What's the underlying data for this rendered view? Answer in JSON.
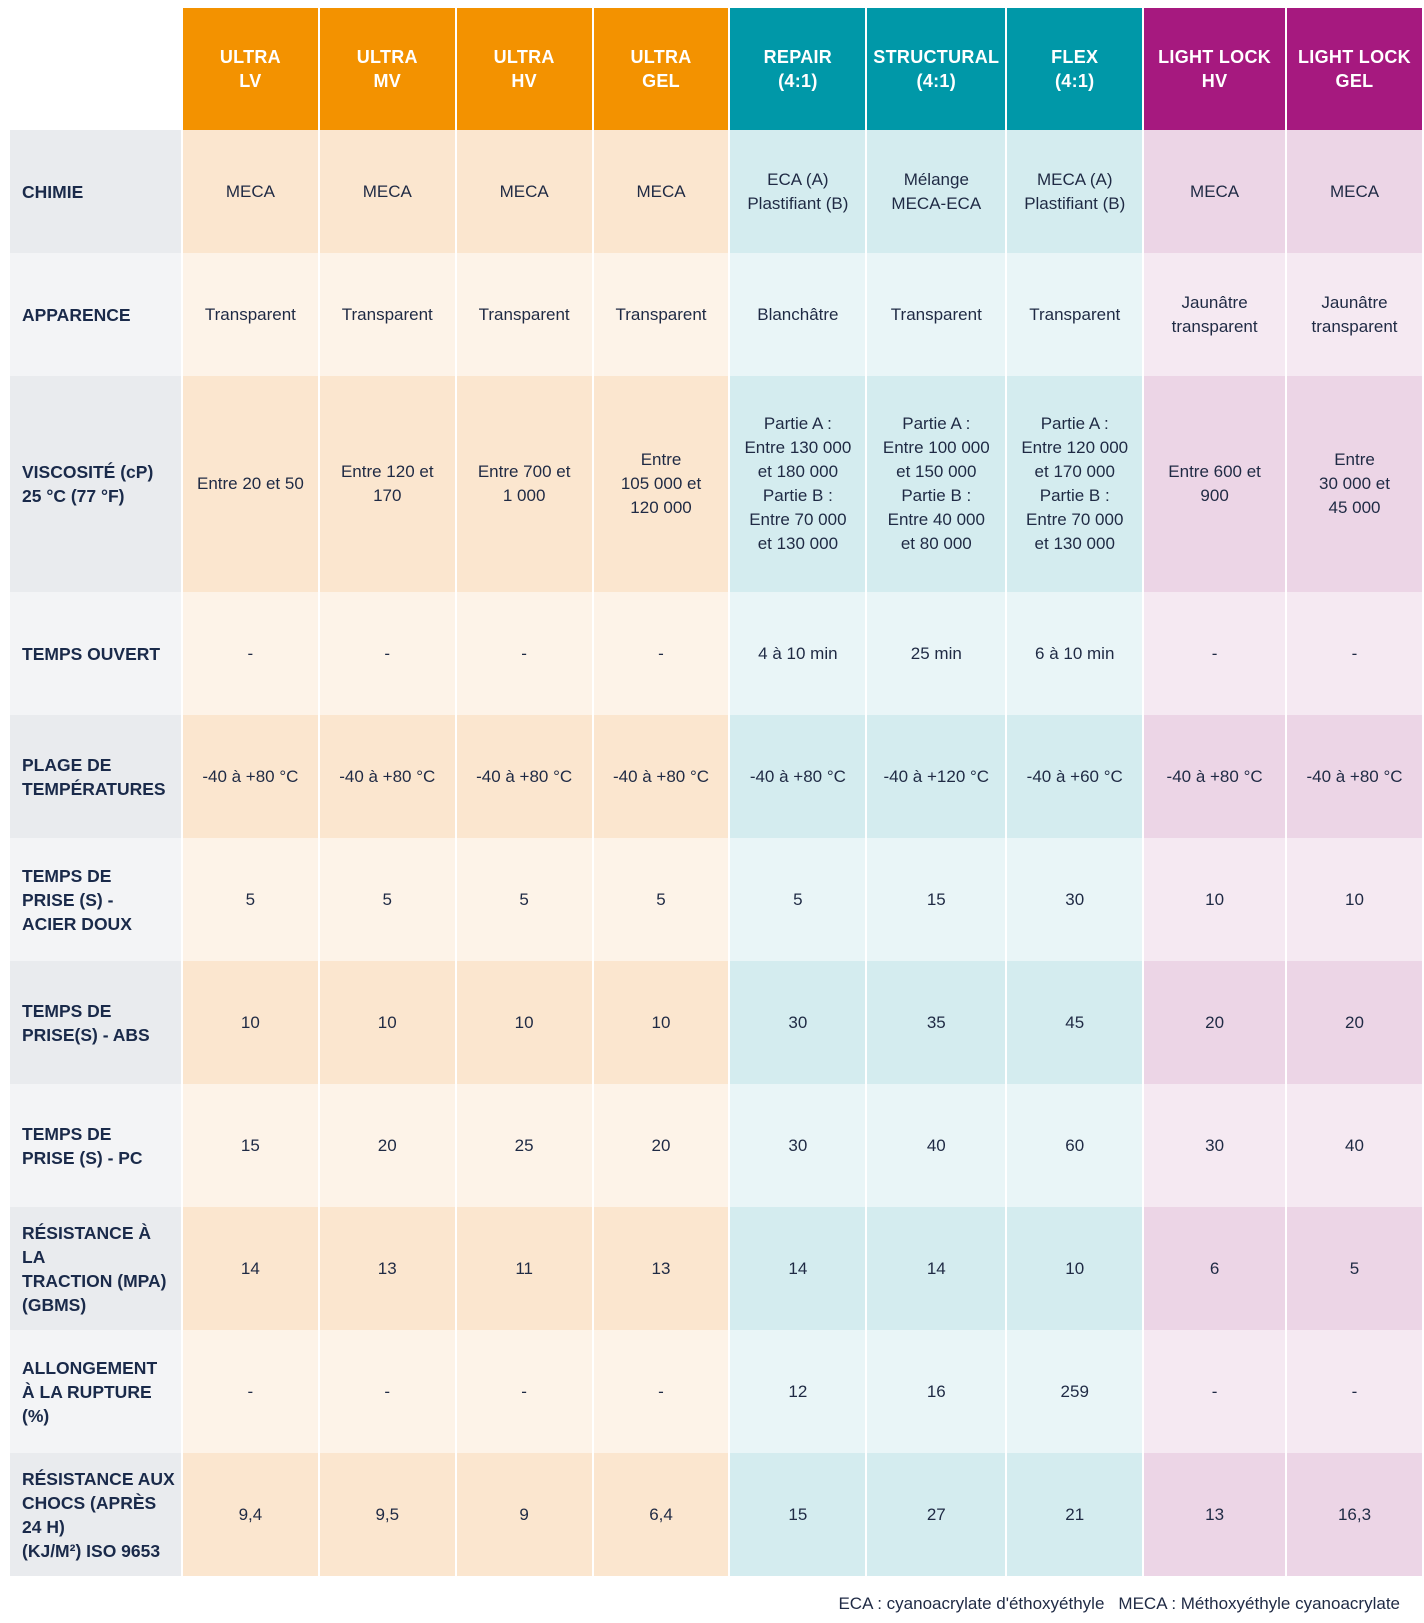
{
  "columns": [
    {
      "label": "ULTRA\nLV",
      "group": "or"
    },
    {
      "label": "ULTRA\nMV",
      "group": "or"
    },
    {
      "label": "ULTRA\nHV",
      "group": "or"
    },
    {
      "label": "ULTRA\nGEL",
      "group": "or"
    },
    {
      "label": "REPAIR\n(4:1)",
      "group": "te"
    },
    {
      "label": "STRUCTURAL\n(4:1)",
      "group": "te"
    },
    {
      "label": "FLEX\n(4:1)",
      "group": "te"
    },
    {
      "label": "LIGHT LOCK\nHV",
      "group": "pu"
    },
    {
      "label": "LIGHT LOCK\nGEL",
      "group": "pu"
    }
  ],
  "group_colors": {
    "or": "#f39200",
    "te": "#0098a8",
    "pu": "#a6197f"
  },
  "rows": [
    {
      "label": "CHIMIE",
      "cells": [
        "MECA",
        "MECA",
        "MECA",
        "MECA",
        "ECA (A)\nPlastifiant (B)",
        "Mélange\nMECA-ECA",
        "MECA (A)\nPlastifiant (B)",
        "MECA",
        "MECA"
      ]
    },
    {
      "label": "APPARENCE",
      "cells": [
        "Transparent",
        "Transparent",
        "Transparent",
        "Transparent",
        "Blanchâtre",
        "Transparent",
        "Transparent",
        "Jaunâtre\ntransparent",
        "Jaunâtre\ntransparent"
      ]
    },
    {
      "label": "VISCOSITÉ (cP)\n25 °C (77 °F)",
      "tall": true,
      "cells": [
        "Entre 20 et 50",
        "Entre 120 et\n170",
        "Entre 700 et\n1 000",
        "Entre\n105 000 et\n120 000",
        "Partie A :\nEntre 130 000\net 180 000\nPartie B :\nEntre 70 000\net 130 000",
        "Partie A :\nEntre 100 000\net 150 000\nPartie B :\nEntre 40 000\net 80 000",
        "Partie A :\nEntre 120 000\net 170 000\nPartie B :\nEntre 70 000\net 130 000",
        "Entre 600 et\n900",
        "Entre\n30 000 et\n45 000"
      ]
    },
    {
      "label": "TEMPS OUVERT",
      "cells": [
        "-",
        "-",
        "-",
        "-",
        "4 à 10 min",
        "25 min",
        "6 à 10 min",
        "-",
        "-"
      ]
    },
    {
      "label": "PLAGE DE\nTEMPÉRATURES",
      "cells": [
        "-40 à +80 °C",
        "-40 à +80 °C",
        "-40 à +80 °C",
        "-40 à +80 °C",
        "-40 à +80 °C",
        "-40 à +120 °C",
        "-40 à +60 °C",
        "-40 à +80 °C",
        "-40 à +80 °C"
      ]
    },
    {
      "label": "TEMPS DE\nPRISE (S) -\nACIER DOUX",
      "cells": [
        "5",
        "5",
        "5",
        "5",
        "5",
        "15",
        "30",
        "10",
        "10"
      ]
    },
    {
      "label": "TEMPS DE\nPRISE(S) - ABS",
      "cells": [
        "10",
        "10",
        "10",
        "10",
        "30",
        "35",
        "45",
        "20",
        "20"
      ]
    },
    {
      "label": "TEMPS DE\nPRISE (S) - PC",
      "cells": [
        "15",
        "20",
        "25",
        "20",
        "30",
        "40",
        "60",
        "30",
        "40"
      ]
    },
    {
      "label": "RÉSISTANCE À LA\nTRACTION (MPA)\n(GBMS)",
      "cells": [
        "14",
        "13",
        "11",
        "13",
        "14",
        "14",
        "10",
        "6",
        "5"
      ]
    },
    {
      "label": "ALLONGEMENT\nÀ LA RUPTURE\n(%)",
      "cells": [
        "-",
        "-",
        "-",
        "-",
        "12",
        "16",
        "259",
        "-",
        "-"
      ]
    },
    {
      "label": "RÉSISTANCE AUX\nCHOCS (APRÈS\n24 H)\n(KJ/M²) ISO 9653",
      "cells": [
        "9,4",
        "9,5",
        "9",
        "6,4",
        "15",
        "27",
        "21",
        "13",
        "16,3"
      ]
    }
  ],
  "footnote": {
    "eca": "ECA : cyanoacrylate d'éthoxyéthyle",
    "meca": "MECA : Méthoxyéthyle cyanoacrylate"
  }
}
